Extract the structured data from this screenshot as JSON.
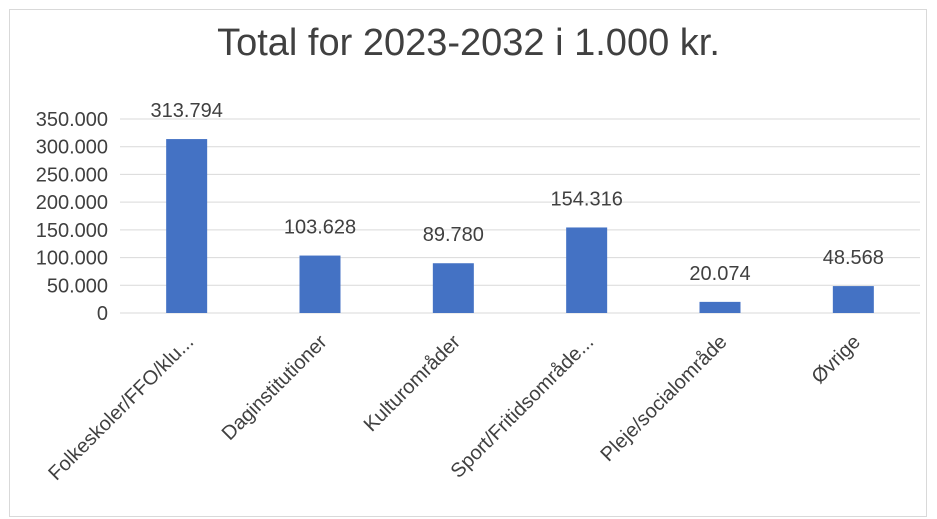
{
  "chart_data": {
    "type": "bar",
    "title": "Total for 2023-2032 i 1.000 kr.",
    "categories": [
      "Folkeskoler/FFO/klu...",
      "Daginstitutioner",
      "Kulturområder",
      "Sport/Fritidsområde...",
      "Pleje/socialområde",
      "Øvrige"
    ],
    "values": [
      313794,
      103628,
      89780,
      154316,
      20074,
      48568
    ],
    "value_labels": [
      "313.794",
      "103.628",
      "89.780",
      "154.316",
      "20.074",
      "48.568"
    ],
    "ylim": [
      0,
      350000
    ],
    "y_ticks": [
      0,
      50000,
      100000,
      150000,
      200000,
      250000,
      300000,
      350000
    ],
    "y_tick_labels": [
      "0",
      "50.000",
      "100.000",
      "150.000",
      "200.000",
      "250.000",
      "300.000",
      "350.000"
    ],
    "xlabel": "",
    "ylabel": "",
    "grid": true,
    "legend": "none",
    "bar_color": "#4472C4",
    "grid_color": "#d9d9d9"
  }
}
